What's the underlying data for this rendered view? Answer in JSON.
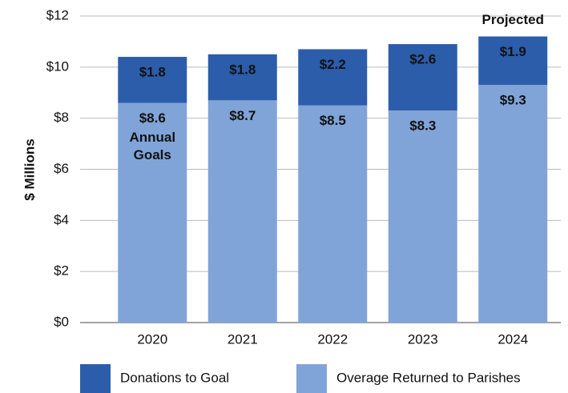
{
  "chart_data": {
    "type": "stacked_bar",
    "y_axis_label": "$ Millions",
    "categories": [
      "2020",
      "2021",
      "2022",
      "2023",
      "2024"
    ],
    "series": [
      {
        "name": "Donations to Goal",
        "color": "#2b5dab",
        "values": [
          1.8,
          1.8,
          2.2,
          2.6,
          1.9
        ],
        "value_labels": [
          "$1.8",
          "$1.8",
          "$2.2",
          "$2.6",
          "$1.9"
        ]
      },
      {
        "name": "Overage Returned to Parishes",
        "color": "#80a4d8",
        "values": [
          8.6,
          8.7,
          8.5,
          8.3,
          9.3
        ],
        "value_labels": [
          "$8.6",
          "$8.7",
          "$8.5",
          "$8.3",
          "$9.3"
        ]
      }
    ],
    "annotations": [
      "Annual Goals",
      "Projected"
    ],
    "ylim": [
      0,
      12
    ],
    "yticks": [
      {
        "value": 0,
        "label": "$0"
      },
      {
        "value": 2,
        "label": "$2"
      },
      {
        "value": 4,
        "label": "$4"
      },
      {
        "value": 6,
        "label": "$6"
      },
      {
        "value": 8,
        "label": "$8"
      },
      {
        "value": 10,
        "label": "$10"
      },
      {
        "value": 12,
        "label": "$12"
      }
    ],
    "grid": true,
    "legend": "bottom"
  }
}
